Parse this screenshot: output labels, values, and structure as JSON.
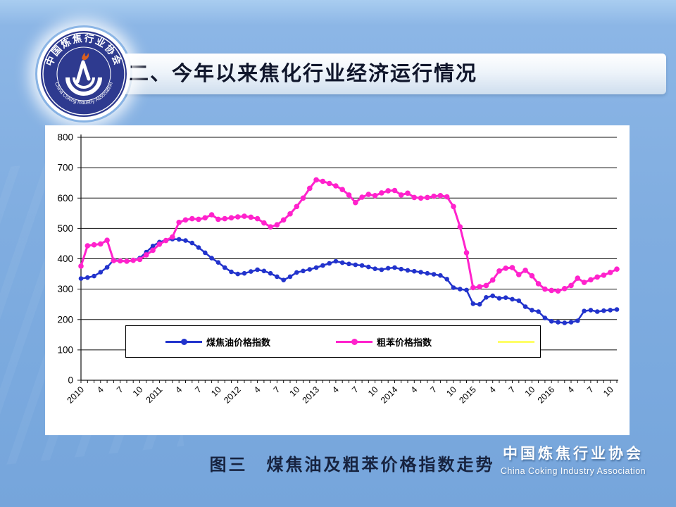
{
  "slide": {
    "title": "二、今年以来焦化行业经济运行情况",
    "caption": "图三　煤焦油及粗苯价格指数走势"
  },
  "logo": {
    "cn": "中国炼焦行业协会",
    "en": "China Coking Industry Association"
  },
  "footer": {
    "cn": "中国炼焦行业协会",
    "en": "China Coking Industry Association"
  },
  "colors": {
    "background": "#7FAFE1",
    "series_blue": "#2233CC",
    "series_pink": "#FF22CC",
    "legend_yellow": "#FFFF66"
  },
  "chart_data": {
    "type": "line",
    "title": "",
    "xlabel": "",
    "ylabel": "",
    "ylim": [
      0,
      800
    ],
    "ytick_step": 100,
    "grid": true,
    "legend_position": "bottom-inside",
    "x_range": "monthly 2010-01 to 2016-11",
    "x_label_interval": 3,
    "x_tick_labels": [
      "2010",
      "4",
      "7",
      "10",
      "2011",
      "4",
      "7",
      "10",
      "2012",
      "4",
      "7",
      "10",
      "2013",
      "4",
      "7",
      "10",
      "2014",
      "4",
      "7",
      "10",
      "2015",
      "4",
      "7",
      "10",
      "2016",
      "4",
      "7",
      "10"
    ],
    "series": [
      {
        "name": "煤焦油价格指数",
        "color": "#2233CC",
        "values": [
          335,
          338,
          343,
          356,
          372,
          396,
          394,
          392,
          395,
          402,
          422,
          442,
          455,
          461,
          465,
          464,
          460,
          452,
          437,
          420,
          402,
          388,
          371,
          357,
          350,
          352,
          358,
          364,
          360,
          352,
          341,
          330,
          341,
          355,
          360,
          365,
          371,
          378,
          385,
          392,
          387,
          383,
          380,
          378,
          373,
          367,
          364,
          369,
          371,
          366,
          362,
          359,
          356,
          352,
          349,
          345,
          333,
          305,
          300,
          297,
          252,
          250,
          273,
          278,
          270,
          272,
          267,
          262,
          242,
          231,
          226,
          205,
          194,
          191,
          189,
          191,
          196,
          228,
          231,
          226,
          229,
          231,
          233
        ]
      },
      {
        "name": "粗苯价格指数",
        "color": "#FF22CC",
        "values": [
          376,
          443,
          446,
          449,
          461,
          394,
          393,
          392,
          395,
          398,
          413,
          428,
          448,
          460,
          472,
          520,
          528,
          532,
          530,
          535,
          545,
          530,
          532,
          535,
          538,
          540,
          537,
          532,
          518,
          505,
          512,
          528,
          548,
          572,
          600,
          632,
          660,
          655,
          648,
          640,
          628,
          610,
          585,
          603,
          612,
          608,
          617,
          624,
          625,
          610,
          616,
          602,
          600,
          602,
          606,
          608,
          604,
          572,
          505,
          420,
          305,
          308,
          312,
          330,
          360,
          369,
          371,
          348,
          362,
          344,
          318,
          300,
          296,
          294,
          302,
          312,
          336,
          322,
          331,
          340,
          346,
          355,
          366
        ]
      },
      {
        "name": "",
        "color": "#FFFF66",
        "values": []
      }
    ]
  }
}
